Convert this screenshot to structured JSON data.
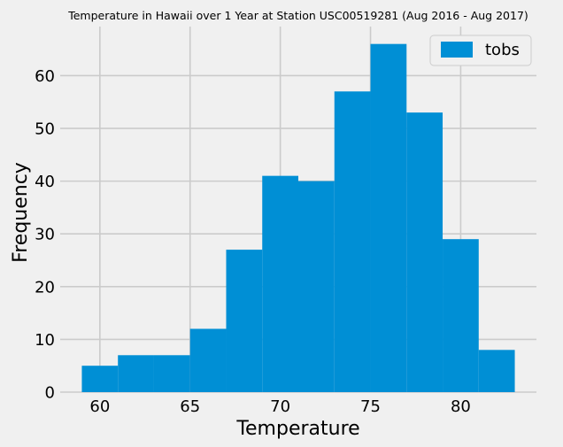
{
  "chart_data": {
    "type": "bar",
    "title": "Temperature in Hawaii over 1 Year at Station USC00519281 (Aug 2016 - Aug 2017)",
    "xlabel": "Temperature",
    "ylabel": "Frequency",
    "xlim": [
      57.8,
      84.2
    ],
    "ylim": [
      0,
      69.3
    ],
    "xticks": [
      60,
      65,
      70,
      75,
      80
    ],
    "yticks": [
      0,
      10,
      20,
      30,
      40,
      50,
      60
    ],
    "grid": true,
    "legend": {
      "position": "top-right",
      "entries": [
        "tobs"
      ]
    },
    "colors": {
      "bar": "#008fd5",
      "background": "#f0f0f0",
      "grid": "#cbcbcb"
    },
    "series": [
      {
        "name": "tobs",
        "bins": [
          {
            "x0": 59,
            "x1": 61,
            "count": 5
          },
          {
            "x0": 61,
            "x1": 63,
            "count": 7
          },
          {
            "x0": 63,
            "x1": 65,
            "count": 7
          },
          {
            "x0": 65,
            "x1": 67,
            "count": 12
          },
          {
            "x0": 67,
            "x1": 69,
            "count": 27
          },
          {
            "x0": 69,
            "x1": 71,
            "count": 41
          },
          {
            "x0": 71,
            "x1": 73,
            "count": 40
          },
          {
            "x0": 73,
            "x1": 75,
            "count": 57
          },
          {
            "x0": 75,
            "x1": 77,
            "count": 66
          },
          {
            "x0": 77,
            "x1": 79,
            "count": 53
          },
          {
            "x0": 79,
            "x1": 81,
            "count": 29
          },
          {
            "x0": 81,
            "x1": 83,
            "count": 8
          }
        ]
      }
    ]
  }
}
